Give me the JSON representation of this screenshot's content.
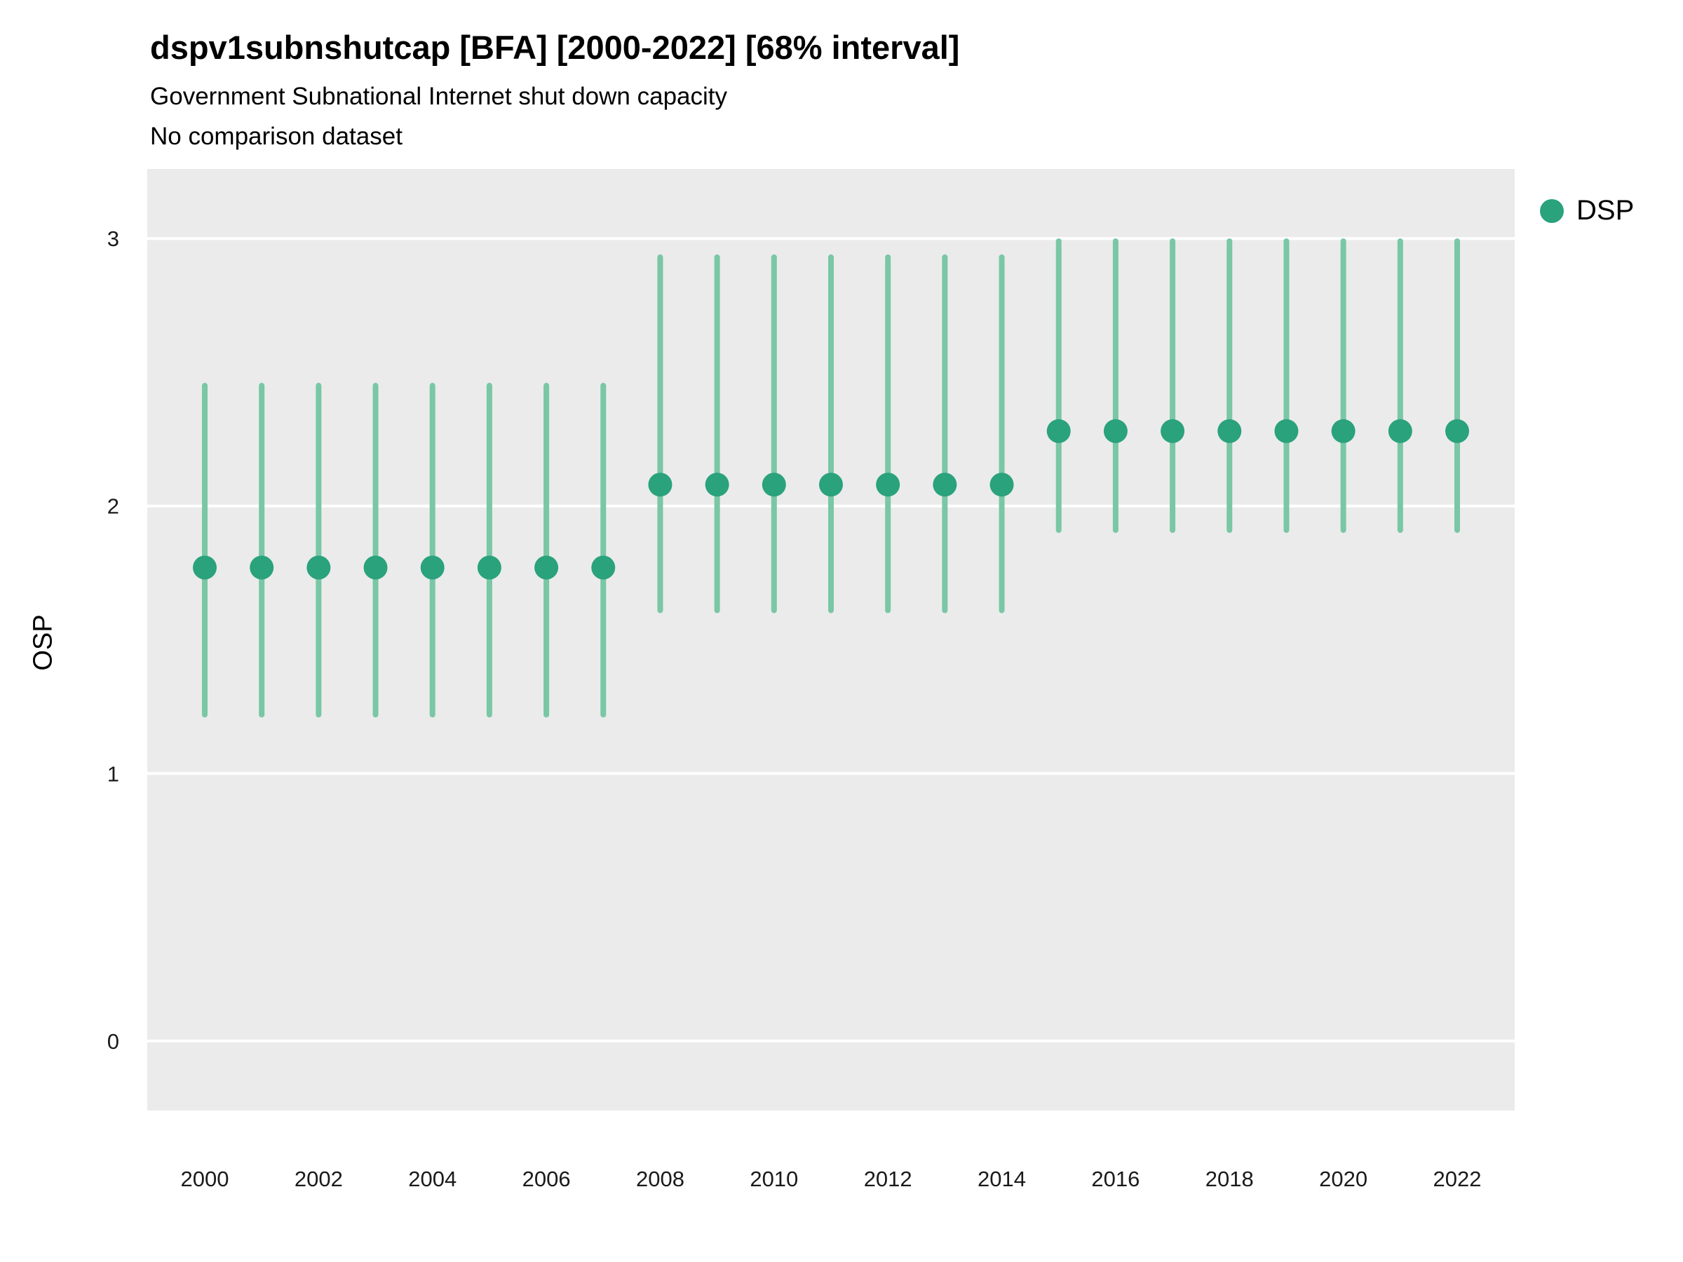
{
  "chart_data": {
    "type": "scatter",
    "title": "dspv1subnshutcap [BFA] [2000-2022] [68% interval]",
    "subtitle": "Government Subnational Internet shut down capacity",
    "note": "No comparison dataset",
    "ylabel": "OSP",
    "xlabel": "",
    "interval": "68%",
    "ylim": [
      -0.26,
      3.26
    ],
    "yticks": [
      0,
      1,
      2,
      3
    ],
    "xticks": [
      2000,
      2002,
      2004,
      2006,
      2008,
      2010,
      2012,
      2014,
      2016,
      2018,
      2020,
      2022
    ],
    "grid": "major-horizontal-only",
    "legend_position": "right",
    "panel_bg": "#ebebeb",
    "gridline_color": "#ffffff",
    "tick_label_color": "#1a1a1a",
    "series": [
      {
        "name": "DSP",
        "point_color": "#2aa27b",
        "interval_color": "#79c7a5",
        "x": [
          2000,
          2001,
          2002,
          2003,
          2004,
          2005,
          2006,
          2007,
          2008,
          2009,
          2010,
          2011,
          2012,
          2013,
          2014,
          2015,
          2016,
          2017,
          2018,
          2019,
          2020,
          2021,
          2022
        ],
        "y": [
          1.77,
          1.77,
          1.77,
          1.77,
          1.77,
          1.77,
          1.77,
          1.77,
          2.08,
          2.08,
          2.08,
          2.08,
          2.08,
          2.08,
          2.08,
          2.28,
          2.28,
          2.28,
          2.28,
          2.28,
          2.28,
          2.28,
          2.28
        ],
        "lo": [
          1.22,
          1.22,
          1.22,
          1.22,
          1.22,
          1.22,
          1.22,
          1.22,
          1.61,
          1.61,
          1.61,
          1.61,
          1.61,
          1.61,
          1.61,
          1.91,
          1.91,
          1.91,
          1.91,
          1.91,
          1.91,
          1.91,
          1.91
        ],
        "hi": [
          2.45,
          2.45,
          2.45,
          2.45,
          2.45,
          2.45,
          2.45,
          2.45,
          2.93,
          2.93,
          2.93,
          2.93,
          2.93,
          2.93,
          2.93,
          2.99,
          2.99,
          2.99,
          2.99,
          2.99,
          2.99,
          2.99,
          2.99
        ]
      }
    ]
  }
}
